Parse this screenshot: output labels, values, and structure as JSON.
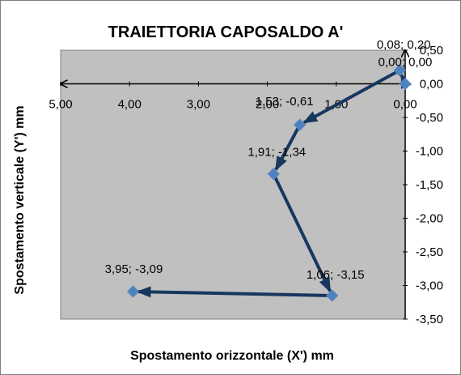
{
  "chart_data": {
    "type": "scatter",
    "title": "TRAIETTORIA CAPOSALDO A'",
    "xlabel": "Spostamento  orizzontale  (X') mm",
    "ylabel": "Spostamento verticale (Y') mm",
    "x_reversed": true,
    "xlim": [
      0,
      5
    ],
    "ylim": [
      -3.5,
      0.5
    ],
    "x_ticks": [
      "0,00",
      "1,00",
      "2,00",
      "3,00",
      "4,00",
      "5,00"
    ],
    "y_ticks": [
      "0,50",
      "0,00",
      "-0,50",
      "-1,00",
      "-1,50",
      "-2,00",
      "-2,50",
      "-3,00",
      "-3,50"
    ],
    "grid": false,
    "plot_background": "#c0c0c0",
    "marker_color": "#4f81bd",
    "line_color": "#17375e",
    "series": [
      {
        "points": [
          {
            "x": 0.0,
            "y": 0.0,
            "label": "0,00; 0,00"
          },
          {
            "x": 0.08,
            "y": 0.2,
            "label": "0,08; 0,20"
          },
          {
            "x": 1.53,
            "y": -0.61,
            "label": "1,53; -0,61"
          },
          {
            "x": 1.91,
            "y": -1.34,
            "label": "1,91; -1,34"
          },
          {
            "x": 1.06,
            "y": -3.15,
            "label": "1,06; -3,15"
          },
          {
            "x": 3.95,
            "y": -3.09,
            "label": "3,95; -3,09"
          }
        ]
      }
    ],
    "axis_arrows": true
  }
}
